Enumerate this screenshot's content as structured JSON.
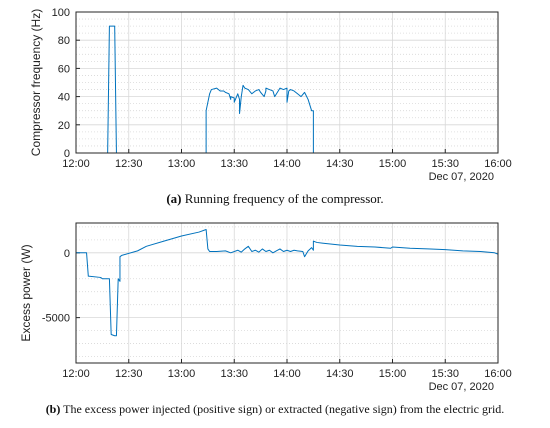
{
  "captions": {
    "a": {
      "label": "(a)",
      "text": " Running frequency of the compressor."
    },
    "b": {
      "label": "(b)",
      "text": " The excess power injected (positive sign) or extracted (negative sign) from the electric grid."
    }
  },
  "colors": {
    "line": "#0072bd",
    "grid": "#d8d8d8",
    "axis": "#262626"
  },
  "chart_data": [
    {
      "type": "line",
      "id": "compressor-frequency",
      "ylabel": "Compressor frequency (Hz)",
      "xlabel": "",
      "date_label": "Dec 07, 2020",
      "xlim": [
        "12:00",
        "16:00"
      ],
      "ylim": [
        0,
        100
      ],
      "x_ticks": [
        "12:00",
        "12:30",
        "13:00",
        "13:30",
        "14:00",
        "14:30",
        "15:00",
        "15:30",
        "16:00"
      ],
      "y_ticks": [
        0,
        20,
        40,
        60,
        80,
        100
      ],
      "y_tick_labels": [
        "0",
        "20",
        "40",
        "60",
        "80",
        "100"
      ],
      "grid": true,
      "series": [
        {
          "x": [
            "12:18",
            "12:19",
            "12:19",
            "12:22",
            "12:23",
            "13:14",
            "13:14",
            "13:16",
            "13:17",
            "13:20",
            "13:22",
            "13:24",
            "13:25",
            "13:27",
            "13:28",
            "13:28",
            "13:30",
            "13:30",
            "13:32",
            "13:33",
            "13:33",
            "13:34",
            "13:35",
            "13:36",
            "13:38",
            "13:40",
            "13:42",
            "13:44",
            "13:45",
            "13:47",
            "13:48",
            "13:48",
            "13:50",
            "13:52",
            "13:53",
            "13:55",
            "13:56",
            "13:58",
            "14:00",
            "14:00",
            "14:01",
            "14:02",
            "14:04",
            "14:06",
            "14:08",
            "14:10",
            "14:12",
            "14:14",
            "14:15",
            "14:15"
          ],
          "y": [
            0,
            90,
            90,
            90,
            0,
            0,
            30,
            42,
            45,
            46,
            44,
            44,
            43,
            42,
            38,
            40,
            39,
            36,
            42,
            38,
            28,
            40,
            48,
            46,
            45,
            42,
            44,
            45,
            43,
            40,
            44,
            46,
            45,
            44,
            40,
            44,
            46,
            45,
            46,
            36,
            44,
            45,
            44,
            42,
            40,
            43,
            38,
            30,
            30,
            0
          ]
        }
      ]
    },
    {
      "type": "line",
      "id": "excess-power",
      "ylabel": "Excess power (W)",
      "xlabel": "",
      "date_label": "Dec 07, 2020",
      "xlim": [
        "12:00",
        "16:00"
      ],
      "ylim": [
        -8500,
        2300
      ],
      "x_ticks": [
        "12:00",
        "12:30",
        "13:00",
        "13:30",
        "14:00",
        "14:30",
        "15:00",
        "15:30",
        "16:00"
      ],
      "y_ticks": [
        0,
        -5000
      ],
      "y_tick_labels": [
        "0",
        "-5000"
      ],
      "grid": true,
      "series": [
        {
          "x": [
            "12:00",
            "12:06",
            "12:07",
            "12:14",
            "12:15",
            "12:19",
            "12:20",
            "12:22",
            "12:23",
            "12:24",
            "12:25",
            "12:25",
            "12:26",
            "12:35",
            "12:40",
            "12:50",
            "13:00",
            "13:10",
            "13:14",
            "13:15",
            "13:16",
            "13:20",
            "13:25",
            "13:28",
            "13:32",
            "13:34",
            "13:36",
            "13:38",
            "13:40",
            "13:42",
            "13:44",
            "13:46",
            "13:48",
            "13:50",
            "13:52",
            "13:54",
            "13:56",
            "13:58",
            "14:00",
            "14:02",
            "14:04",
            "14:06",
            "14:09",
            "14:10",
            "14:12",
            "14:14",
            "14:15",
            "14:15",
            "14:16",
            "14:17",
            "14:20",
            "14:30",
            "14:40",
            "14:50",
            "14:59",
            "15:00",
            "15:10",
            "15:20",
            "15:30",
            "15:40",
            "15:50",
            "15:58",
            "16:00"
          ],
          "y": [
            0,
            0,
            -1800,
            -1900,
            -2000,
            -2000,
            -6300,
            -6400,
            -6400,
            -2000,
            -2200,
            -300,
            -200,
            150,
            500,
            900,
            1300,
            1600,
            1800,
            300,
            100,
            100,
            150,
            0,
            200,
            50,
            300,
            500,
            100,
            200,
            50,
            300,
            100,
            200,
            0,
            150,
            300,
            100,
            200,
            100,
            200,
            150,
            100,
            -300,
            150,
            400,
            200,
            900,
            850,
            800,
            750,
            600,
            500,
            450,
            350,
            450,
            350,
            300,
            250,
            150,
            100,
            0,
            -100
          ]
        }
      ]
    }
  ]
}
